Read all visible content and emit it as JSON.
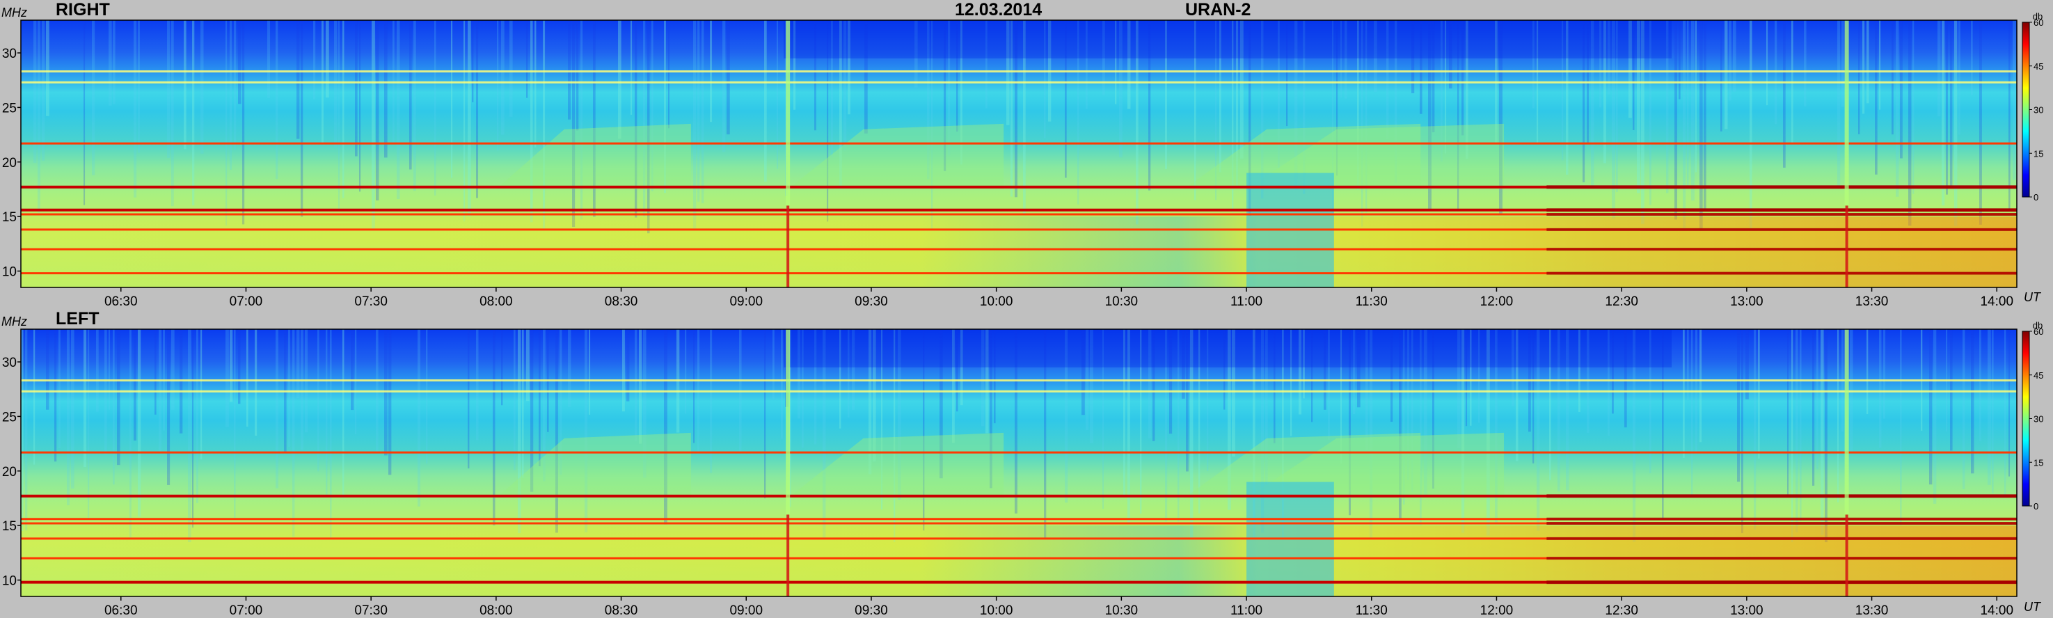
{
  "header": {
    "date": "12.03.2014",
    "station": "URAN-2"
  },
  "chart_data": [
    {
      "type": "heatmap",
      "title": "RIGHT",
      "ylabel": "MHz",
      "xlabel": "UT",
      "y_range_mhz": [
        8.5,
        33
      ],
      "y_ticks": [
        10,
        15,
        20,
        25,
        30
      ],
      "x_range_hours": [
        6.1,
        14.08
      ],
      "x_ticks": [
        "06:30",
        "07:00",
        "07:30",
        "08:00",
        "08:30",
        "09:00",
        "09:30",
        "10:00",
        "10:30",
        "11:00",
        "11:30",
        "12:00",
        "12:30",
        "13:00",
        "13:30",
        "14:00"
      ],
      "colorbar": {
        "label": "db",
        "range": [
          0,
          60
        ],
        "ticks": [
          0,
          15,
          30,
          45,
          60
        ]
      },
      "bands_mhz": [
        9.8,
        12.0,
        13.8,
        15.2,
        15.6,
        17.7,
        21.7,
        27.3,
        28.3
      ],
      "intense_bands_mhz": [
        15.6,
        17.7
      ],
      "vertical_events_ut": [
        "09:10",
        "13:24"
      ],
      "drift_events_start_ut": [
        "08:00",
        "09:10",
        "10:45",
        "11:00"
      ]
    },
    {
      "type": "heatmap",
      "title": "LEFT",
      "ylabel": "MHz",
      "xlabel": "UT",
      "y_range_mhz": [
        8.5,
        33
      ],
      "y_ticks": [
        10,
        15,
        20,
        25,
        30
      ],
      "x_range_hours": [
        6.1,
        14.08
      ],
      "x_ticks": [
        "06:30",
        "07:00",
        "07:30",
        "08:00",
        "08:30",
        "09:00",
        "09:30",
        "10:00",
        "10:30",
        "11:00",
        "11:30",
        "12:00",
        "12:30",
        "13:00",
        "13:30",
        "14:00"
      ],
      "colorbar": {
        "label": "db",
        "range": [
          0,
          60
        ],
        "ticks": [
          0,
          15,
          30,
          45,
          60
        ]
      },
      "bands_mhz": [
        9.8,
        12.0,
        13.8,
        15.2,
        15.6,
        17.7,
        21.7,
        27.3,
        28.3
      ],
      "intense_bands_mhz": [
        17.7,
        9.8
      ],
      "vertical_events_ut": [
        "09:10",
        "13:24"
      ],
      "drift_events_start_ut": [
        "08:00",
        "09:10",
        "10:45",
        "11:00"
      ]
    }
  ],
  "colors": {
    "background": "#c0c0c0",
    "colormap": [
      "#00008f",
      "#0000ff",
      "#0080ff",
      "#00ffff",
      "#80ff80",
      "#ffff00",
      "#ff8000",
      "#ff0000",
      "#800000"
    ]
  }
}
